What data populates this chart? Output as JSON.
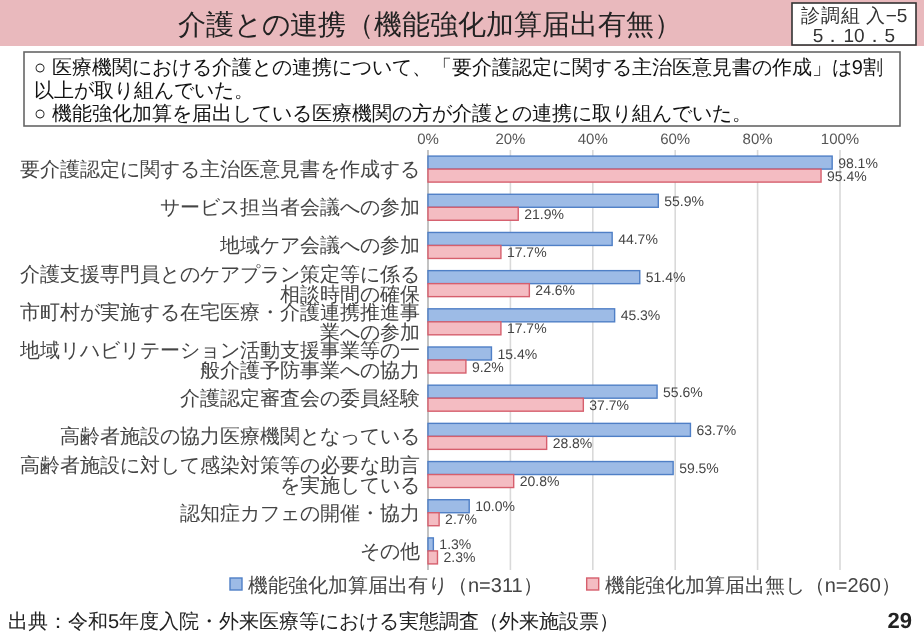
{
  "chart_data": {
    "type": "bar",
    "orientation": "horizontal",
    "title": "介護との連携（機能強化加算届出有無）",
    "annotations": [
      "診調組 入−5\n5．10．5",
      "○ 医療機関における介護との連携について、「要介護認定に関する主治医意見書の作成」は9割以上が取り組んでいた。",
      "○ 機能強化加算を届出している医療機関の方が介護との連携に取り組んでいた。",
      "出典：令和5年度入院・外来医療等における実態調査（外来施設票）",
      "29"
    ],
    "categories": [
      "要介護認定に関する主治医意見書を作成する",
      "サービス担当者会議への参加",
      "地域ケア会議への参加",
      "介護支援専門員とのケアプラン策定等に係る相談時間の確保",
      "市町村が実施する在宅医療・介護連携推進事業への参加",
      "地域リハビリテーション活動支援事業等の一般介護予防事業への協力",
      "介護認定審査会の委員経験",
      "高齢者施設の協力医療機関となっている",
      "高齢者施設に対して感染対策等の必要な助言を実施している",
      "認知症カフェの開催・協力",
      "その他"
    ],
    "series": [
      {
        "name": "機能強化加算届出有り（n=311）",
        "color": "#9dbbe6",
        "values": [
          98.1,
          55.9,
          44.7,
          51.4,
          45.3,
          15.4,
          55.6,
          63.7,
          59.5,
          10.0,
          1.3
        ],
        "value_labels": [
          "98.1%",
          "55.9%",
          "44.7%",
          "51.4%",
          "45.3%",
          "15.4%",
          "55.6%",
          "63.7%",
          "59.5%",
          "10.0%",
          "1.3%"
        ]
      },
      {
        "name": "機能強化加算届出無し（n=260）",
        "color": "#f4bcc2",
        "values": [
          95.4,
          21.9,
          17.7,
          24.6,
          17.7,
          9.2,
          37.7,
          28.8,
          20.8,
          2.7,
          2.3
        ],
        "value_labels": [
          "95.4%",
          "21.9%",
          "17.7%",
          "24.6%",
          "17.7%",
          "9.2%",
          "37.7%",
          "28.8%",
          "20.8%",
          "2.7%",
          "2.3%"
        ]
      }
    ],
    "xlim": [
      0,
      100
    ],
    "xticks": [
      {
        "value": 0,
        "label": "0%"
      },
      {
        "value": 20,
        "label": "20%"
      },
      {
        "value": 40,
        "label": "40%"
      },
      {
        "value": 60,
        "label": "60%"
      },
      {
        "value": 80,
        "label": "80%"
      },
      {
        "value": 100,
        "label": "100%"
      }
    ],
    "grid": "x",
    "legend": "bottom"
  }
}
